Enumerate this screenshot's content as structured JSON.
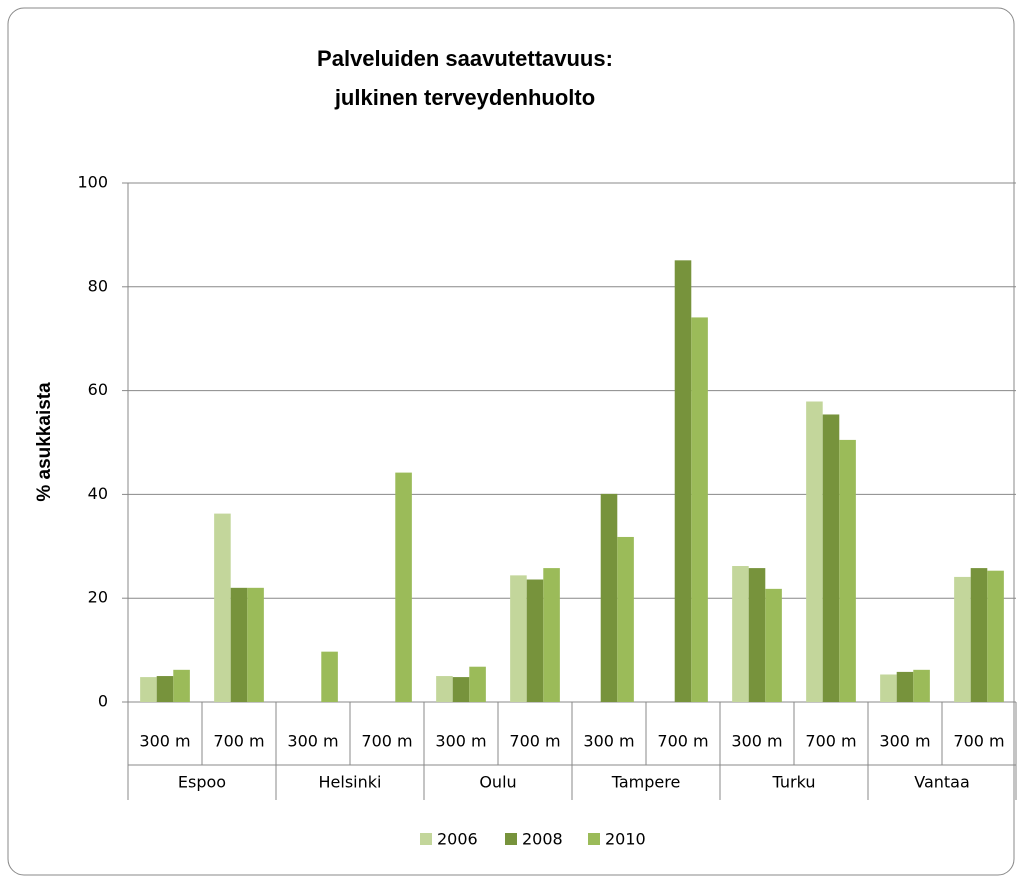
{
  "chart_data": {
    "type": "bar",
    "title": [
      "Palveluiden saavutettavuus:",
      "julkinen terveydenhuolto"
    ],
    "ylabel": "% asukkaista",
    "groups": [
      "Espoo",
      "Helsinki",
      "Oulu",
      "Tampere",
      "Turku",
      "Vantaa"
    ],
    "categories": [
      "300 m",
      "700 m",
      "300 m",
      "700 m",
      "300 m",
      "700 m",
      "300 m",
      "700 m",
      "300 m",
      "700 m",
      "300 m",
      "700 m"
    ],
    "series": [
      {
        "name": "2006",
        "color": "#c3d69b",
        "values": [
          4.8,
          36.3,
          null,
          null,
          5.0,
          24.4,
          null,
          null,
          26.2,
          57.9,
          5.3,
          24.1
        ]
      },
      {
        "name": "2008",
        "color": "#77933c",
        "values": [
          5.0,
          22.0,
          null,
          null,
          4.8,
          23.6,
          40.1,
          85.1,
          25.8,
          55.4,
          5.8,
          25.8
        ]
      },
      {
        "name": "2010",
        "color": "#9bbb59",
        "values": [
          6.2,
          22.0,
          9.7,
          44.2,
          6.8,
          25.8,
          31.8,
          74.1,
          21.8,
          50.5,
          6.2,
          25.3
        ]
      }
    ],
    "ylim": [
      0,
      100
    ],
    "yticks": [
      0,
      20,
      40,
      60,
      80,
      100
    ],
    "grid": true,
    "legend": "bottom"
  }
}
